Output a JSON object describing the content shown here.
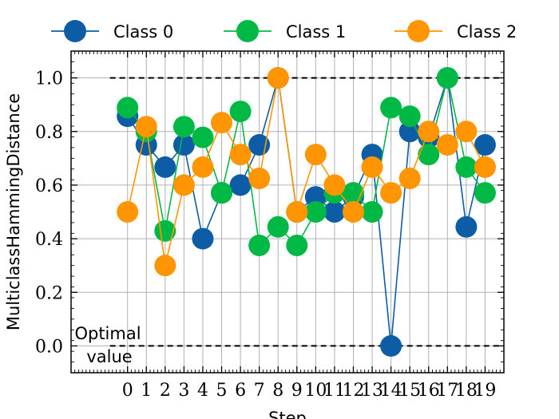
{
  "chart_data": {
    "type": "line",
    "title": "",
    "xlabel": "Step",
    "ylabel": "MulticlassHammingDistance",
    "x": [
      0,
      1,
      2,
      3,
      4,
      5,
      6,
      7,
      8,
      9,
      10,
      11,
      12,
      13,
      14,
      15,
      16,
      17,
      18,
      19
    ],
    "xlim": [
      -3,
      20
    ],
    "ylim": [
      -0.1,
      1.1
    ],
    "yticks": [
      0.0,
      0.2,
      0.4,
      0.6,
      0.8,
      1.0
    ],
    "ytick_labels": [
      "0.0",
      "0.2",
      "0.4",
      "0.6",
      "0.8",
      "1.0"
    ],
    "grid": true,
    "legend_position": "top, outside plot area",
    "series": [
      {
        "name": "Class 0",
        "color": "#0C5DA5",
        "values": [
          0.857,
          0.75,
          0.667,
          0.75,
          0.4,
          0.571,
          0.6,
          0.75,
          1.0,
          0.5,
          0.556,
          0.5,
          0.556,
          0.714,
          0.0,
          0.8,
          0.778,
          1.0,
          0.444,
          0.75
        ]
      },
      {
        "name": "Class 1",
        "color": "#00B945",
        "values": [
          0.889,
          0.8,
          0.429,
          0.818,
          0.778,
          0.571,
          0.875,
          0.375,
          0.444,
          0.375,
          0.5,
          0.571,
          0.571,
          0.5,
          0.889,
          0.857,
          0.714,
          1.0,
          0.667,
          0.571
        ]
      },
      {
        "name": "Class 2",
        "color": "#FF9500",
        "values": [
          0.5,
          0.818,
          0.3,
          0.6,
          0.667,
          0.833,
          0.714,
          0.625,
          1.0,
          0.5,
          0.714,
          0.6,
          0.5,
          0.667,
          0.571,
          0.625,
          0.8,
          0.75,
          0.8,
          0.667
        ]
      }
    ],
    "reference_lines": [
      {
        "y": 1.0,
        "style": "dashed",
        "color": "#000000"
      },
      {
        "y": 0.0,
        "style": "dashed",
        "color": "#000000"
      }
    ],
    "annotations": [
      {
        "text_lines": [
          "Optimal",
          "value"
        ]
      }
    ]
  }
}
